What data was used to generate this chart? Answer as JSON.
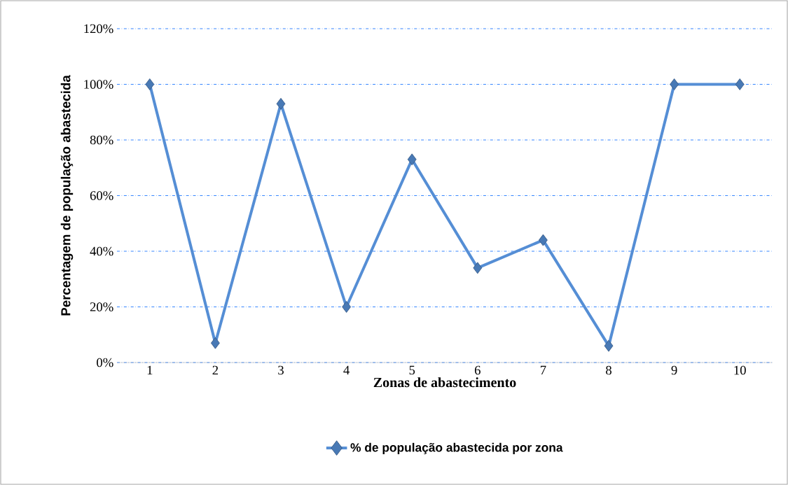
{
  "chart_data": {
    "type": "line",
    "xlabel": "Zonas de abastecimento",
    "ylabel": "Percentagem de população abastecida",
    "categories": [
      "1",
      "2",
      "3",
      "4",
      "5",
      "6",
      "7",
      "8",
      "9",
      "10"
    ],
    "series": [
      {
        "name": "% de população abastecida por zona",
        "color": "#558ed5",
        "values": [
          100,
          7,
          93,
          20,
          73,
          34,
          44,
          6,
          100,
          100
        ]
      }
    ],
    "ylim": [
      0,
      120
    ],
    "yticks": [
      {
        "value": 0,
        "label": "0%"
      },
      {
        "value": 20,
        "label": "20%"
      },
      {
        "value": 40,
        "label": "40%"
      },
      {
        "value": 60,
        "label": "60%"
      },
      {
        "value": 80,
        "label": "80%"
      },
      {
        "value": 100,
        "label": "100%"
      },
      {
        "value": 120,
        "label": "120%"
      }
    ],
    "grid": "y",
    "legend": "bottom",
    "marker": "diamond",
    "line_style": "solid"
  }
}
